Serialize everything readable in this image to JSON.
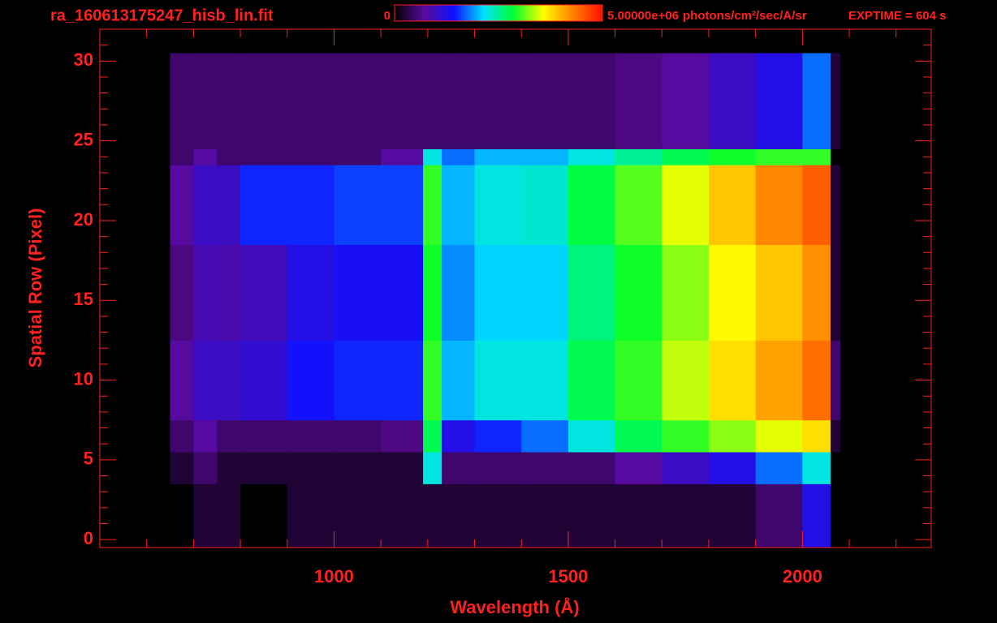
{
  "chart_data": {
    "type": "heatmap",
    "title": "ra_160613175247_hisb_lin.fit",
    "annotation": "EXPTIME = 604 s",
    "xlabel": "Wavelength (Å)",
    "ylabel": "Spatial Row (Pixel)",
    "xlim": [
      500,
      2275
    ],
    "ylim": [
      -0.5,
      32
    ],
    "xticks": [
      1000,
      1500,
      2000
    ],
    "yticks": [
      0,
      5,
      10,
      15,
      20,
      25,
      30
    ],
    "xminorticks": [
      600,
      700,
      800,
      900,
      1100,
      1200,
      1300,
      1400,
      1600,
      1700,
      1800,
      1900,
      2100,
      2200
    ],
    "yminorticks": [
      1,
      2,
      3,
      4,
      6,
      7,
      8,
      9,
      11,
      12,
      13,
      14,
      16,
      17,
      18,
      19,
      21,
      22,
      23,
      24,
      26,
      27,
      28,
      29,
      31,
      32
    ],
    "color": "#ff2020",
    "zlim": [
      0,
      5000000
    ],
    "colorbar": {
      "ticks": [
        0,
        {
          "value": 5000000,
          "label": "5.00000e+06"
        }
      ],
      "label": "photons/cm²/sec/A/sr"
    },
    "colormap": [
      "#000000",
      "#5a0a9a",
      "#1010ff",
      "#00e0ff",
      "#00ff30",
      "#ffff00",
      "#ff8000",
      "#ff1000"
    ],
    "x_edges": [
      650,
      700,
      750,
      800,
      900,
      1000,
      1100,
      1190,
      1230,
      1300,
      1400,
      1500,
      1600,
      1700,
      1800,
      1900,
      2000,
      2060,
      2080
    ],
    "y_edges": [
      -0.5,
      3.5,
      5.5,
      7.5,
      12.5,
      18.5,
      23.5,
      24.5,
      30.5
    ],
    "z": [
      [
        0,
        250000,
        250000,
        0,
        250000,
        250000,
        250000,
        250000,
        250000,
        250000,
        250000,
        250000,
        250000,
        250000,
        250000,
        500000,
        1250000,
        0
      ],
      [
        250000,
        500000,
        250000,
        250000,
        250000,
        250000,
        250000,
        2250000,
        500000,
        500000,
        500000,
        500000,
        750000,
        1000000,
        1250000,
        1750000,
        2250000,
        0
      ],
      [
        500000,
        750000,
        500000,
        500000,
        500000,
        500000,
        600000,
        2750000,
        1250000,
        1500000,
        1750000,
        2250000,
        2750000,
        3000000,
        3250000,
        3500000,
        3750000,
        250000
      ],
      [
        750000,
        1000000,
        1000000,
        1100000,
        1400000,
        1500000,
        1500000,
        3000000,
        2000000,
        2250000,
        2250000,
        2750000,
        3000000,
        3400000,
        3750000,
        4100000,
        4400000,
        500000
      ],
      [
        600000,
        900000,
        850000,
        950000,
        1250000,
        1350000,
        1350000,
        2900000,
        1850000,
        2100000,
        2100000,
        2600000,
        2900000,
        3250000,
        3600000,
        3900000,
        4200000,
        250000
      ],
      [
        750000,
        1000000,
        1000000,
        1500000,
        1500000,
        1600000,
        1600000,
        3000000,
        2000000,
        2250000,
        2300000,
        2800000,
        3100000,
        3500000,
        3900000,
        4250000,
        4500000,
        250000
      ],
      [
        500000,
        750000,
        500000,
        500000,
        500000,
        500000,
        750000,
        2250000,
        1750000,
        2000000,
        2000000,
        2250000,
        2500000,
        2750000,
        2900000,
        3000000,
        3000000,
        0
      ],
      [
        500000,
        500000,
        500000,
        500000,
        500000,
        500000,
        500000,
        500000,
        500000,
        500000,
        500000,
        500000,
        600000,
        750000,
        1000000,
        1250000,
        1750000,
        250000
      ]
    ]
  }
}
